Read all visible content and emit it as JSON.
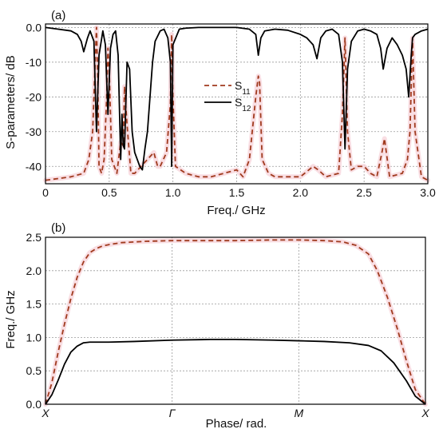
{
  "chart_data": [
    {
      "type": "line",
      "panel_label": "(a)",
      "xlabel": "Freq./ GHz",
      "ylabel": "S-parameters/ dB",
      "xlim": [
        0,
        3.0
      ],
      "ylim": [
        -45,
        1
      ],
      "xticks": [
        0,
        0.5,
        1.0,
        1.5,
        2.0,
        2.5,
        3.0
      ],
      "xtick_labels": [
        "0",
        "0.5",
        "1.0",
        "1.5",
        "2.0",
        "2.5",
        "3.0"
      ],
      "yticks": [
        0,
        -10,
        -20,
        -30,
        -40
      ],
      "ytick_labels": [
        "0.0",
        "-10",
        "-20",
        "-30",
        "-40"
      ],
      "grid": true,
      "legend_position": "center",
      "series": [
        {
          "name": "S11",
          "name_main": "S",
          "name_sub": "11",
          "color": "#a03a1e",
          "style": "dashed",
          "x": [
            0,
            0.1,
            0.2,
            0.3,
            0.34,
            0.37,
            0.39,
            0.4,
            0.41,
            0.42,
            0.44,
            0.46,
            0.48,
            0.49,
            0.5,
            0.52,
            0.54,
            0.56,
            0.59,
            0.61,
            0.62,
            0.64,
            0.67,
            0.7,
            0.75,
            0.8,
            0.85,
            0.88,
            0.9,
            0.95,
            0.98,
            0.99,
            1.0,
            1.02,
            1.1,
            1.2,
            1.3,
            1.4,
            1.5,
            1.55,
            1.6,
            1.65,
            1.67,
            1.68,
            1.7,
            1.75,
            1.8,
            1.9,
            2.0,
            2.1,
            2.14,
            2.2,
            2.3,
            2.33,
            2.35,
            2.37,
            2.4,
            2.45,
            2.5,
            2.55,
            2.6,
            2.64,
            2.66,
            2.7,
            2.8,
            2.84,
            2.86,
            2.88,
            2.9,
            2.95,
            3.0
          ],
          "y": [
            -44,
            -43.5,
            -43,
            -42,
            -38,
            -30,
            -10,
            0,
            -14,
            -40,
            -42,
            -38,
            -20,
            -6,
            -12,
            -38,
            -40,
            -42,
            -33,
            -34,
            -17,
            -28,
            -42,
            -42,
            -40,
            -38,
            -36,
            -40,
            -40,
            -36,
            -22,
            -2,
            -20,
            -40,
            -42,
            -43,
            -43,
            -42,
            -41,
            -43,
            -38,
            -20,
            -14,
            -16,
            -38,
            -42,
            -43,
            -43,
            -43,
            -40,
            -41,
            -43,
            -42,
            -25,
            -3,
            -30,
            -41,
            -40,
            -40,
            -42,
            -43,
            -36,
            -32,
            -43,
            -42,
            -38,
            -30,
            -3,
            -30,
            -43,
            -44
          ]
        },
        {
          "name": "S12",
          "name_main": "S",
          "name_sub": "12",
          "color": "#000000",
          "style": "solid",
          "x": [
            0,
            0.1,
            0.2,
            0.25,
            0.28,
            0.3,
            0.33,
            0.35,
            0.38,
            0.4,
            0.42,
            0.45,
            0.47,
            0.49,
            0.51,
            0.53,
            0.55,
            0.57,
            0.59,
            0.6,
            0.61,
            0.62,
            0.64,
            0.66,
            0.68,
            0.7,
            0.72,
            0.74,
            0.76,
            0.78,
            0.8,
            0.84,
            0.86,
            0.9,
            0.93,
            0.96,
            0.98,
            0.99,
            1.0,
            1.05,
            1.1,
            1.2,
            1.4,
            1.5,
            1.6,
            1.65,
            1.67,
            1.69,
            1.72,
            1.8,
            1.9,
            2.0,
            2.05,
            2.1,
            2.13,
            2.14,
            2.16,
            2.2,
            2.25,
            2.3,
            2.33,
            2.35,
            2.37,
            2.4,
            2.45,
            2.5,
            2.55,
            2.6,
            2.63,
            2.65,
            2.66,
            2.68,
            2.72,
            2.76,
            2.8,
            2.83,
            2.85,
            2.87,
            2.88,
            2.9,
            2.95,
            3.0
          ],
          "y": [
            0,
            -0.5,
            -1,
            -2,
            -4,
            -7,
            -3,
            -1,
            -4,
            -30,
            -8,
            -1,
            -5,
            -25,
            -6,
            -2,
            -1,
            -8,
            -38,
            -25,
            -34,
            -35,
            -10,
            -12,
            -30,
            -36,
            -38,
            -40,
            -41,
            -35,
            -30,
            -10,
            -4,
            -1,
            -0.5,
            -3,
            -10,
            -40,
            -5,
            -0.5,
            -0.2,
            0,
            0,
            0,
            -0.5,
            -2,
            -8,
            -3,
            -1,
            -0.5,
            -0.8,
            -2,
            -3,
            -5,
            -9,
            -7,
            -3,
            -1,
            -0.5,
            -2,
            -10,
            -35,
            -12,
            -4,
            -1,
            -0.5,
            -1,
            -2,
            -6,
            -12,
            -10,
            -6,
            -3,
            -5,
            -8,
            -12,
            -20,
            -8,
            -3,
            -2,
            -1,
            -0.5
          ]
        }
      ]
    },
    {
      "type": "line",
      "panel_label": "(b)",
      "xlabel": "Phase/ rad.",
      "ylabel": "Freq./ GHz",
      "xlim": [
        0,
        3
      ],
      "ylim": [
        0,
        2.5
      ],
      "xticks": [
        0,
        1,
        2,
        3
      ],
      "xtick_labels": [
        "X",
        "Γ",
        "M",
        "X"
      ],
      "yticks": [
        0,
        0.5,
        1.0,
        1.5,
        2.0,
        2.5
      ],
      "ytick_labels": [
        "0.0",
        "0.5",
        "1.0",
        "1.5",
        "2.0",
        "2.5"
      ],
      "grid": true,
      "series": [
        {
          "color": "#a03a1e",
          "style": "dashed",
          "x": [
            0,
            0.05,
            0.1,
            0.15,
            0.2,
            0.25,
            0.3,
            0.35,
            0.4,
            0.45,
            0.5,
            0.6,
            0.8,
            1.0,
            1.2,
            1.5,
            1.8,
            2.0,
            2.2,
            2.35,
            2.45,
            2.55,
            2.62,
            2.7,
            2.78,
            2.85,
            2.92,
            3.0
          ],
          "y": [
            0,
            0.32,
            0.78,
            1.2,
            1.58,
            1.9,
            2.13,
            2.27,
            2.33,
            2.37,
            2.39,
            2.42,
            2.44,
            2.45,
            2.45,
            2.45,
            2.46,
            2.46,
            2.45,
            2.43,
            2.38,
            2.25,
            2.0,
            1.6,
            1.12,
            0.65,
            0.22,
            0
          ]
        },
        {
          "color": "#000000",
          "style": "solid",
          "x": [
            0,
            0.05,
            0.1,
            0.15,
            0.2,
            0.25,
            0.3,
            0.35,
            0.4,
            0.5,
            0.7,
            1.0,
            1.3,
            1.5,
            1.8,
            2.0,
            2.2,
            2.4,
            2.55,
            2.65,
            2.75,
            2.85,
            2.92,
            3.0
          ],
          "y": [
            0,
            0.14,
            0.36,
            0.6,
            0.78,
            0.87,
            0.92,
            0.93,
            0.93,
            0.93,
            0.94,
            0.96,
            0.97,
            0.97,
            0.96,
            0.95,
            0.94,
            0.92,
            0.88,
            0.8,
            0.62,
            0.35,
            0.12,
            0
          ]
        }
      ]
    }
  ]
}
